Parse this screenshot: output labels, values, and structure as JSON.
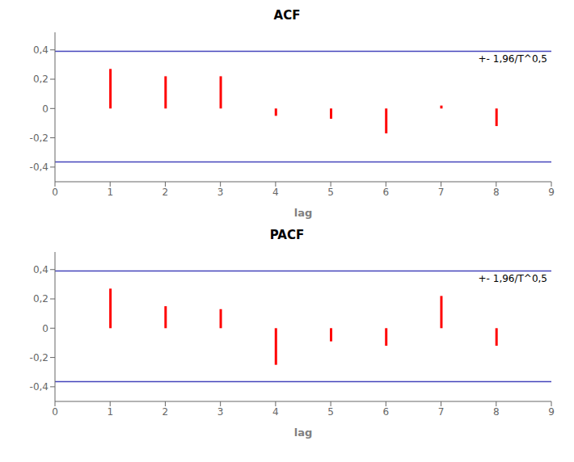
{
  "chart_data": [
    {
      "type": "bar",
      "title": "ACF",
      "x_label": "lag",
      "x": [
        1,
        2,
        3,
        4,
        5,
        6,
        7,
        8
      ],
      "values": [
        0.27,
        0.22,
        0.22,
        -0.05,
        -0.07,
        -0.17,
        0.02,
        -0.12
      ],
      "color": "#ff0000",
      "xlim": [
        0,
        9
      ],
      "xticks": [
        0,
        1,
        2,
        3,
        4,
        5,
        6,
        7,
        8,
        9
      ],
      "ylim": [
        -0.5,
        0.52
      ],
      "yticks": [
        {
          "value": -0.4,
          "label": "-0,4"
        },
        {
          "value": -0.2,
          "label": "-0,2"
        },
        0,
        {
          "value": 0.2,
          "label": "0,2"
        },
        {
          "value": 0.4,
          "label": "0,4"
        }
      ],
      "ci": {
        "upper": 0.39,
        "lower": -0.365,
        "label": "+- 1,96/T^0,5",
        "color": "#4444bb"
      },
      "grid": false
    },
    {
      "type": "bar",
      "title": "PACF",
      "x_label": "lag",
      "x": [
        1,
        2,
        3,
        4,
        5,
        6,
        7,
        8
      ],
      "values": [
        0.27,
        0.15,
        0.13,
        -0.25,
        -0.09,
        -0.12,
        0.22,
        -0.12
      ],
      "color": "#ff0000",
      "xlim": [
        0,
        9
      ],
      "xticks": [
        0,
        1,
        2,
        3,
        4,
        5,
        6,
        7,
        8,
        9
      ],
      "ylim": [
        -0.5,
        0.52
      ],
      "yticks": [
        {
          "value": -0.4,
          "label": "-0,4"
        },
        {
          "value": -0.2,
          "label": "-0,2"
        },
        0,
        {
          "value": 0.2,
          "label": "0,2"
        },
        {
          "value": 0.4,
          "label": "0,4"
        }
      ],
      "ci": {
        "upper": 0.39,
        "lower": -0.365,
        "label": "+- 1,96/T^0,5",
        "color": "#4444bb"
      },
      "grid": false
    }
  ]
}
